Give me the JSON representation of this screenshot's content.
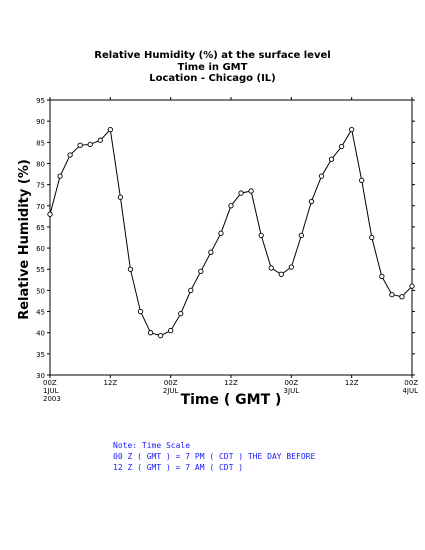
{
  "chart_data": {
    "type": "line",
    "title_lines": [
      "Relative Humidity (%) at the surface level",
      "Time in GMT",
      "Location - Chicago (IL)"
    ],
    "xlabel": "Time ( GMT )",
    "ylabel": "Relative Humidity (%)",
    "ylim": [
      30,
      95
    ],
    "yticks": [
      30,
      35,
      40,
      45,
      50,
      55,
      60,
      65,
      70,
      75,
      80,
      85,
      90,
      95
    ],
    "xlim": [
      0,
      72
    ],
    "xticks": [
      {
        "x": 0,
        "lines": [
          "00Z",
          "1JUL",
          "2003"
        ]
      },
      {
        "x": 12,
        "lines": [
          "12Z"
        ]
      },
      {
        "x": 24,
        "lines": [
          "00Z",
          "2JUL"
        ]
      },
      {
        "x": 36,
        "lines": [
          "12Z"
        ]
      },
      {
        "x": 48,
        "lines": [
          "00Z",
          "3JUL"
        ]
      },
      {
        "x": 60,
        "lines": [
          "12Z"
        ]
      },
      {
        "x": 72,
        "lines": [
          "00Z",
          "4JUL"
        ]
      }
    ],
    "grid": false,
    "series": [
      {
        "color": "#000000",
        "x": [
          0,
          2,
          4,
          6,
          8,
          10,
          12,
          14,
          16,
          18,
          20,
          22,
          24,
          26,
          28,
          30,
          32,
          34,
          36,
          38,
          40,
          42,
          44,
          46,
          48,
          50,
          52,
          54,
          56,
          58,
          60,
          62,
          64,
          66,
          68,
          70,
          72
        ],
        "values": [
          68,
          77,
          82,
          84.3,
          84.5,
          85.5,
          88,
          72,
          55,
          45,
          40,
          39.3,
          40.5,
          44.5,
          50,
          54.5,
          59,
          63.5,
          70,
          73,
          73.5,
          63,
          55.3,
          53.8,
          55.5,
          63,
          71,
          77,
          81,
          84,
          88,
          76,
          62.5,
          53.3,
          49,
          48.5,
          51
        ]
      }
    ]
  },
  "notes": [
    "Note: Time Scale",
    "00 Z ( GMT ) = 7 PM ( CDT ) THE DAY BEFORE",
    "12 Z ( GMT ) = 7 AM ( CDT )"
  ]
}
